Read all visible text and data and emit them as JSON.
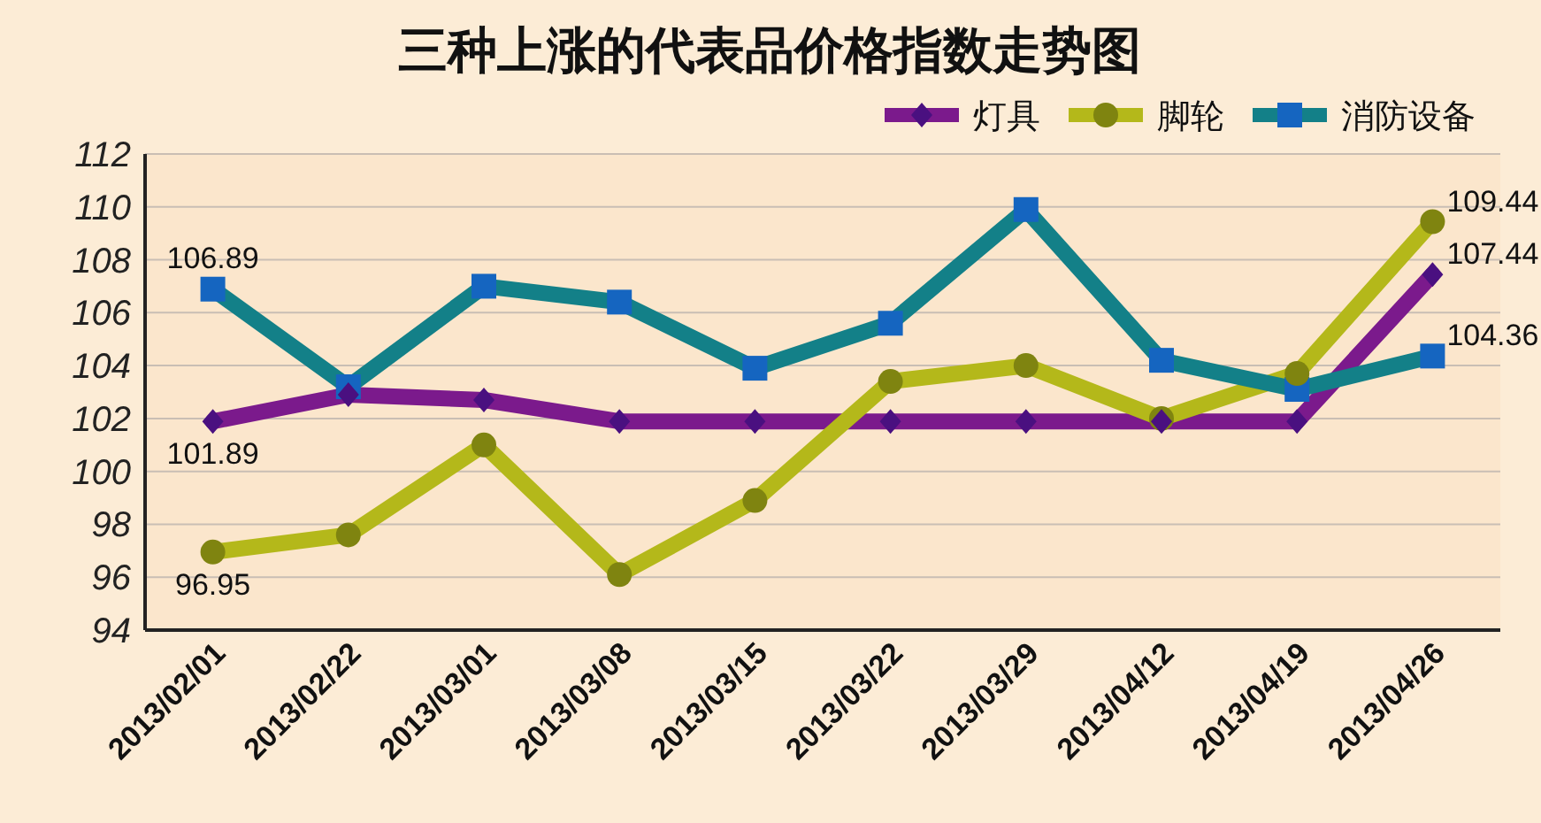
{
  "chart_data": {
    "type": "line",
    "title": "三种上涨的代表品价格指数走势图",
    "categories": [
      "2013/02/01",
      "2013/02/22",
      "2013/03/01",
      "2013/03/08",
      "2013/03/15",
      "2013/03/22",
      "2013/03/29",
      "2013/04/12",
      "2013/04/19",
      "2013/04/26"
    ],
    "series": [
      {
        "name": "灯具",
        "color": "#7b1a8c",
        "marker": "diamond",
        "values": [
          101.89,
          102.9,
          102.7,
          101.89,
          101.89,
          101.89,
          101.89,
          101.89,
          101.89,
          107.44
        ],
        "value_labels": [
          "101.89",
          null,
          null,
          null,
          null,
          null,
          null,
          null,
          null,
          "107.44"
        ]
      },
      {
        "name": "脚轮",
        "color": "#b4b81a",
        "marker": "circle",
        "values": [
          96.95,
          97.6,
          101.0,
          96.1,
          98.9,
          103.4,
          104.0,
          102.0,
          103.7,
          109.44
        ],
        "value_labels": [
          "96.95",
          null,
          null,
          null,
          null,
          null,
          null,
          null,
          null,
          "109.44"
        ]
      },
      {
        "name": "消防设备",
        "color": "#138088",
        "marker": "square",
        "values": [
          106.89,
          103.2,
          107.0,
          106.4,
          103.9,
          105.6,
          109.9,
          104.2,
          103.1,
          104.36
        ],
        "value_labels": [
          "106.89",
          null,
          null,
          null,
          null,
          null,
          null,
          null,
          null,
          "104.36"
        ]
      }
    ],
    "ylim": [
      94,
      112
    ],
    "yticks": [
      94,
      96,
      98,
      100,
      102,
      104,
      106,
      108,
      110,
      112
    ],
    "grid": "y",
    "legend": "top right"
  }
}
